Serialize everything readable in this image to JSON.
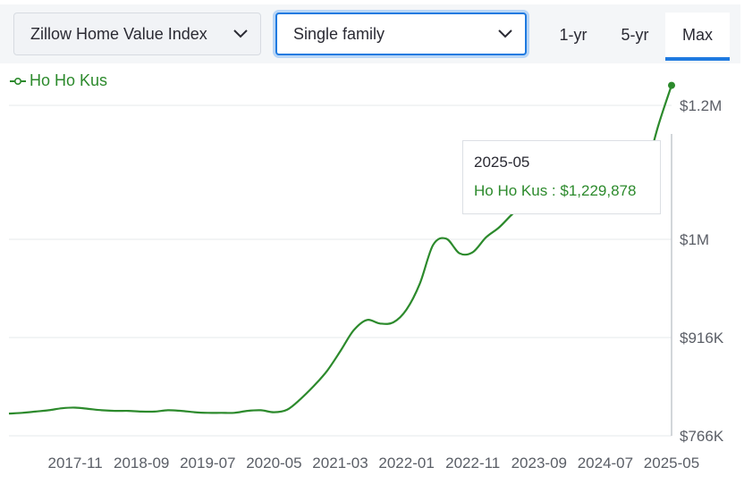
{
  "controls": {
    "metric_select": "Zillow Home Value Index",
    "type_select": "Single family",
    "range_tabs": [
      "1-yr",
      "5-yr",
      "Max"
    ],
    "active_tab": "Max"
  },
  "tooltip": {
    "date": "2025-05",
    "series_label": "Ho Ho Kus",
    "value_text": "$1,229,878"
  },
  "chart_data": {
    "type": "line",
    "series": [
      {
        "name": "Ho Ho Kus",
        "color": "#2c8a2c",
        "x": [
          "2017-01",
          "2017-03",
          "2017-05",
          "2017-07",
          "2017-09",
          "2017-11",
          "2018-01",
          "2018-03",
          "2018-05",
          "2018-07",
          "2018-09",
          "2018-11",
          "2019-01",
          "2019-03",
          "2019-05",
          "2019-07",
          "2019-09",
          "2019-11",
          "2020-01",
          "2020-03",
          "2020-05",
          "2020-07",
          "2020-09",
          "2020-11",
          "2021-01",
          "2021-03",
          "2021-05",
          "2021-07",
          "2021-09",
          "2021-11",
          "2022-01",
          "2022-03",
          "2022-05",
          "2022-07",
          "2022-09",
          "2022-11",
          "2023-01",
          "2023-03",
          "2023-05",
          "2023-07",
          "2023-09",
          "2023-11",
          "2024-01",
          "2024-03",
          "2024-05",
          "2024-07",
          "2024-09",
          "2024-11",
          "2025-01",
          "2025-03",
          "2025-05"
        ],
        "values": [
          800000,
          801000,
          803000,
          805000,
          808000,
          809000,
          807000,
          805000,
          804000,
          804000,
          803000,
          803000,
          805000,
          804000,
          802000,
          801000,
          801000,
          801000,
          804000,
          805000,
          802000,
          806000,
          822000,
          842000,
          865000,
          895000,
          922000,
          931000,
          928000,
          929000,
          940000,
          962000,
          995000,
          1001000,
          988000,
          989000,
          1003000,
          1018000,
          1038000,
          1054000,
          1062000,
          1065000,
          1066000,
          1066000,
          1066000,
          1066000,
          1066000,
          1066000,
          1100000,
          1170000,
          1229878
        ]
      }
    ],
    "x_tick_labels": [
      "2017-11",
      "2018-09",
      "2019-07",
      "2020-05",
      "2021-03",
      "2022-01",
      "2022-11",
      "2023-09",
      "2024-07",
      "2025-05"
    ],
    "y_tick_labels": [
      "$1.2M",
      "$1M",
      "$916K",
      "$766K"
    ],
    "axis_position_y": "right",
    "grid": true,
    "legend": "top-left",
    "xlabel": "",
    "ylabel": ""
  }
}
